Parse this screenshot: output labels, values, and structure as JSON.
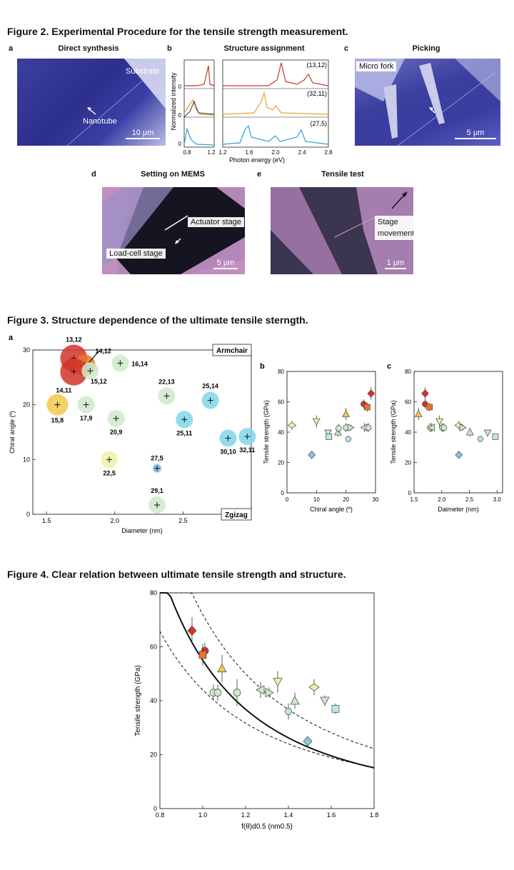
{
  "figure2": {
    "title": "Figure 2. Experimental Procedure for the tensile strength measurement.",
    "panel_a": {
      "label": "a",
      "title": "Direct synthesis",
      "substrate": "Substrate",
      "nanotube": "Nanotube",
      "scale": "10 μm"
    },
    "panel_b": {
      "label": "b",
      "title": "Structure assignment",
      "ylabel": "Normalized intensity",
      "xlabel": "Photon energy (eV)",
      "ticks_left": [
        "0.8",
        "1.2"
      ],
      "ticks_right": [
        "1.2",
        "1.6",
        "2.0",
        "2.4",
        "2.8"
      ],
      "y_zero": "0",
      "y_zero2": "0",
      "y_zero3": "0",
      "species": [
        "(13,12)",
        "(32,11)",
        "(27,5)"
      ]
    },
    "panel_c": {
      "label": "c",
      "title": "Picking",
      "fork": "Micro fork",
      "scale": "5 μm"
    },
    "panel_d": {
      "label": "d",
      "title": "Setting on MEMS",
      "actuator": "Actuator stage",
      "loadcell": "Load-cell stage",
      "scale": "5 μm"
    },
    "panel_e": {
      "label": "e",
      "title": "Tensile test",
      "stage_line1": "Stage",
      "stage_line2": "movement",
      "scale": "1 μm"
    }
  },
  "figure3": {
    "title": "Figure 3. Structure dependence of the ultimate tensile sterngth."
  },
  "figure4": {
    "title": "Figure 4. Clear relation between ultimate tensile strength and structure."
  },
  "colors": {
    "red": "#d4332a",
    "orange": "#e8752a",
    "yellow": "#f2c84b",
    "lightyellow": "#eef2a6",
    "lightgreen": "#cfeacb",
    "cyan": "#7fd6ea",
    "blue": "#7ab8e6",
    "vhdiamond": "#8ac4ea"
  },
  "chart_data": [
    {
      "id": "fig3a",
      "type": "scatter",
      "label": "a",
      "xlabel": "Diameter (nm)",
      "ylabel": "Chiral angle (º)",
      "xlim": [
        1.4,
        3.0
      ],
      "ylim": [
        0,
        30
      ],
      "xticks": [
        1.5,
        2.0,
        2.5
      ],
      "yticks": [
        0,
        10,
        20,
        30
      ],
      "armchair": "Armchair",
      "zigzag": "Zgizag",
      "points": [
        {
          "label": "13,12",
          "x": 1.7,
          "y": 28.5,
          "color": "#d4332a",
          "size": 3
        },
        {
          "label": "14,12",
          "x": 1.78,
          "y": 27.2,
          "color": "#e8752a",
          "size": 2
        },
        {
          "label": "14,11",
          "x": 1.7,
          "y": 26.0,
          "color": "#d4332a",
          "size": 3
        },
        {
          "label": "15,12",
          "x": 1.82,
          "y": 26.2,
          "color": "#cfeacb",
          "size": 1
        },
        {
          "label": "16,14",
          "x": 2.04,
          "y": 27.6,
          "color": "#cfeacb",
          "size": 1
        },
        {
          "label": "15,8",
          "x": 1.58,
          "y": 20.0,
          "color": "#f2c84b",
          "size": 2
        },
        {
          "label": "17,9",
          "x": 1.79,
          "y": 20.0,
          "color": "#cfeacb",
          "size": 1
        },
        {
          "label": "20,9",
          "x": 2.01,
          "y": 17.5,
          "color": "#cfeacb",
          "size": 1
        },
        {
          "label": "22,13",
          "x": 2.38,
          "y": 21.6,
          "color": "#cfeacb",
          "size": 1
        },
        {
          "label": "25,14",
          "x": 2.7,
          "y": 20.8,
          "color": "#7fd6ea",
          "size": 1
        },
        {
          "label": "25,11",
          "x": 2.51,
          "y": 17.3,
          "color": "#7fd6ea",
          "size": 1
        },
        {
          "label": "30,10",
          "x": 2.83,
          "y": 13.9,
          "color": "#7fd6ea",
          "size": 1
        },
        {
          "label": "32,11",
          "x": 2.97,
          "y": 14.2,
          "color": "#7fd6ea",
          "size": 1
        },
        {
          "label": "22,5",
          "x": 1.96,
          "y": 10.0,
          "color": "#eef2a6",
          "size": 1
        },
        {
          "label": "27,5",
          "x": 2.31,
          "y": 8.4,
          "color": "#7ab8e6",
          "size": 0
        },
        {
          "label": "29,1",
          "x": 2.31,
          "y": 1.7,
          "color": "#cfeacb",
          "size": 1
        }
      ]
    },
    {
      "id": "fig3b",
      "type": "scatter",
      "label": "b",
      "xlabel": "Chiral angle (º)",
      "ylabel": "Tensile strength (GPa)",
      "xlim": [
        0,
        30
      ],
      "ylim": [
        0,
        80
      ],
      "xticks": [
        0,
        10,
        20,
        30
      ],
      "yticks": [
        0,
        20,
        40,
        60,
        80
      ],
      "points": [
        {
          "x": 1.7,
          "y": 44.5,
          "err": 3,
          "marker": "diamond-h",
          "color": "#eef2a6"
        },
        {
          "x": 8.4,
          "y": 25,
          "err": 0,
          "marker": "diamond",
          "color": "#8ac4ea"
        },
        {
          "x": 10.0,
          "y": 47,
          "err": 4,
          "marker": "tri-down",
          "color": "#eef2a6"
        },
        {
          "x": 13.9,
          "y": 39.5,
          "err": 2,
          "marker": "tri-down",
          "color": "#cfeacb"
        },
        {
          "x": 14.2,
          "y": 37,
          "err": 2,
          "marker": "square",
          "color": "#bfe6f0"
        },
        {
          "x": 17.3,
          "y": 40,
          "err": 3,
          "marker": "tri-up",
          "color": "#cfeacb"
        },
        {
          "x": 17.5,
          "y": 42.5,
          "err": 3,
          "marker": "circle",
          "color": "#cfeacb"
        },
        {
          "x": 20.0,
          "y": 52,
          "err": 4,
          "marker": "tri-up",
          "color": "#f2c84b"
        },
        {
          "x": 20.0,
          "y": 43,
          "err": 3,
          "marker": "circle",
          "color": "#cfeacb"
        },
        {
          "x": 20.8,
          "y": 35.5,
          "err": 2,
          "marker": "hexagon",
          "color": "#bfe6f0"
        },
        {
          "x": 21.6,
          "y": 43,
          "err": 2,
          "marker": "tri-right",
          "color": "#cfeacb"
        },
        {
          "x": 26.0,
          "y": 58.5,
          "err": 3,
          "marker": "circle",
          "color": "#d4332a"
        },
        {
          "x": 26.2,
          "y": 43,
          "err": 3,
          "marker": "tri-left",
          "color": "#cfeacb"
        },
        {
          "x": 27.2,
          "y": 56.5,
          "err": 3,
          "marker": "square",
          "color": "#e8752a"
        },
        {
          "x": 27.6,
          "y": 43,
          "err": 3,
          "marker": "circle",
          "color": "#cfeacb"
        },
        {
          "x": 28.5,
          "y": 65.5,
          "err": 4,
          "marker": "diamond",
          "color": "#d4332a"
        }
      ]
    },
    {
      "id": "fig3c",
      "type": "scatter",
      "label": "c",
      "xlabel": "Daimeter (nm)",
      "ylabel": "Tensile strength (GPa)",
      "xlim": [
        1.5,
        3.1
      ],
      "ylim": [
        0,
        80
      ],
      "xticks": [
        1.5,
        2.0,
        2.5,
        3.0
      ],
      "yticks": [
        0,
        20,
        40,
        60,
        80
      ],
      "points": [
        {
          "x": 1.58,
          "y": 52,
          "err": 4,
          "marker": "tri-up",
          "color": "#f2c84b"
        },
        {
          "x": 1.7,
          "y": 65.5,
          "err": 4,
          "marker": "diamond",
          "color": "#d4332a"
        },
        {
          "x": 1.7,
          "y": 58.5,
          "err": 3,
          "marker": "circle",
          "color": "#d4332a"
        },
        {
          "x": 1.78,
          "y": 56.5,
          "err": 3,
          "marker": "square",
          "color": "#e8752a"
        },
        {
          "x": 1.79,
          "y": 43,
          "err": 3,
          "marker": "circle",
          "color": "#cfeacb"
        },
        {
          "x": 1.82,
          "y": 43,
          "err": 3,
          "marker": "tri-left",
          "color": "#cfeacb"
        },
        {
          "x": 1.96,
          "y": 47,
          "err": 4,
          "marker": "tri-down",
          "color": "#eef2a6"
        },
        {
          "x": 2.01,
          "y": 43,
          "err": 3,
          "marker": "circle",
          "color": "#cfeacb"
        },
        {
          "x": 2.04,
          "y": 43,
          "err": 3,
          "marker": "circle",
          "color": "#cfeacb"
        },
        {
          "x": 2.31,
          "y": 44.5,
          "err": 3,
          "marker": "diamond-h",
          "color": "#eef2a6"
        },
        {
          "x": 2.31,
          "y": 25,
          "err": 0,
          "marker": "diamond",
          "color": "#8ac4ea"
        },
        {
          "x": 2.38,
          "y": 43,
          "err": 2,
          "marker": "tri-right",
          "color": "#cfeacb"
        },
        {
          "x": 2.51,
          "y": 40,
          "err": 3,
          "marker": "tri-up",
          "color": "#cfeacb"
        },
        {
          "x": 2.7,
          "y": 35.5,
          "err": 2,
          "marker": "hexagon",
          "color": "#bfe6f0"
        },
        {
          "x": 2.83,
          "y": 39.5,
          "err": 2,
          "marker": "tri-down",
          "color": "#cfeacb"
        },
        {
          "x": 2.97,
          "y": 37,
          "err": 2,
          "marker": "square",
          "color": "#bfe6f0"
        }
      ]
    },
    {
      "id": "fig4",
      "type": "scatter",
      "xlabel": "f(θ)d0.5 (nm0.5)",
      "ylabel": "Tensile strength (GPa)",
      "xlim": [
        0.8,
        1.8
      ],
      "ylim": [
        0,
        80
      ],
      "xticks": [
        0.8,
        1.0,
        1.2,
        1.4,
        1.6,
        1.8
      ],
      "yticks": [
        0,
        20,
        40,
        60,
        80
      ],
      "fit": {
        "a": 55,
        "b": -2.2
      },
      "bands": [
        {
          "a": 72,
          "b": -2.0
        },
        {
          "a": 44,
          "b": -1.8
        }
      ],
      "points": [
        {
          "x": 0.95,
          "y": 66,
          "err": 5,
          "marker": "diamond",
          "color": "#d4332a"
        },
        {
          "x": 1.01,
          "y": 58.5,
          "err": 3,
          "marker": "circle",
          "color": "#d4332a"
        },
        {
          "x": 1.0,
          "y": 57,
          "err": 4,
          "marker": "square",
          "color": "#e8752a"
        },
        {
          "x": 1.09,
          "y": 52,
          "err": 5,
          "marker": "tri-up",
          "color": "#f2c84b"
        },
        {
          "x": 1.05,
          "y": 43,
          "err": 3,
          "marker": "circle",
          "color": "#cfeacb"
        },
        {
          "x": 1.07,
          "y": 43,
          "err": 3,
          "marker": "circle",
          "color": "#cfeacb"
        },
        {
          "x": 1.16,
          "y": 43,
          "err": 5,
          "marker": "circle",
          "color": "#cfeacb"
        },
        {
          "x": 1.27,
          "y": 44,
          "err": 3,
          "marker": "tri-left",
          "color": "#cfeacb"
        },
        {
          "x": 1.31,
          "y": 43,
          "err": 2,
          "marker": "tri-right",
          "color": "#cfeacb"
        },
        {
          "x": 1.35,
          "y": 47,
          "err": 4,
          "marker": "tri-down",
          "color": "#eef2a6"
        },
        {
          "x": 1.4,
          "y": 36,
          "err": 3,
          "marker": "hexagon",
          "color": "#bfe6f0"
        },
        {
          "x": 1.43,
          "y": 40,
          "err": 3,
          "marker": "tri-up",
          "color": "#cfeacb"
        },
        {
          "x": 1.49,
          "y": 25,
          "err": 0,
          "marker": "diamond",
          "color": "#8ac4ea"
        },
        {
          "x": 1.52,
          "y": 45,
          "err": 3,
          "marker": "diamond-h",
          "color": "#eef2a6"
        },
        {
          "x": 1.57,
          "y": 40,
          "err": 2,
          "marker": "tri-down",
          "color": "#cfeacb"
        },
        {
          "x": 1.62,
          "y": 37,
          "err": 2,
          "marker": "square",
          "color": "#bfe6f0"
        }
      ]
    }
  ]
}
